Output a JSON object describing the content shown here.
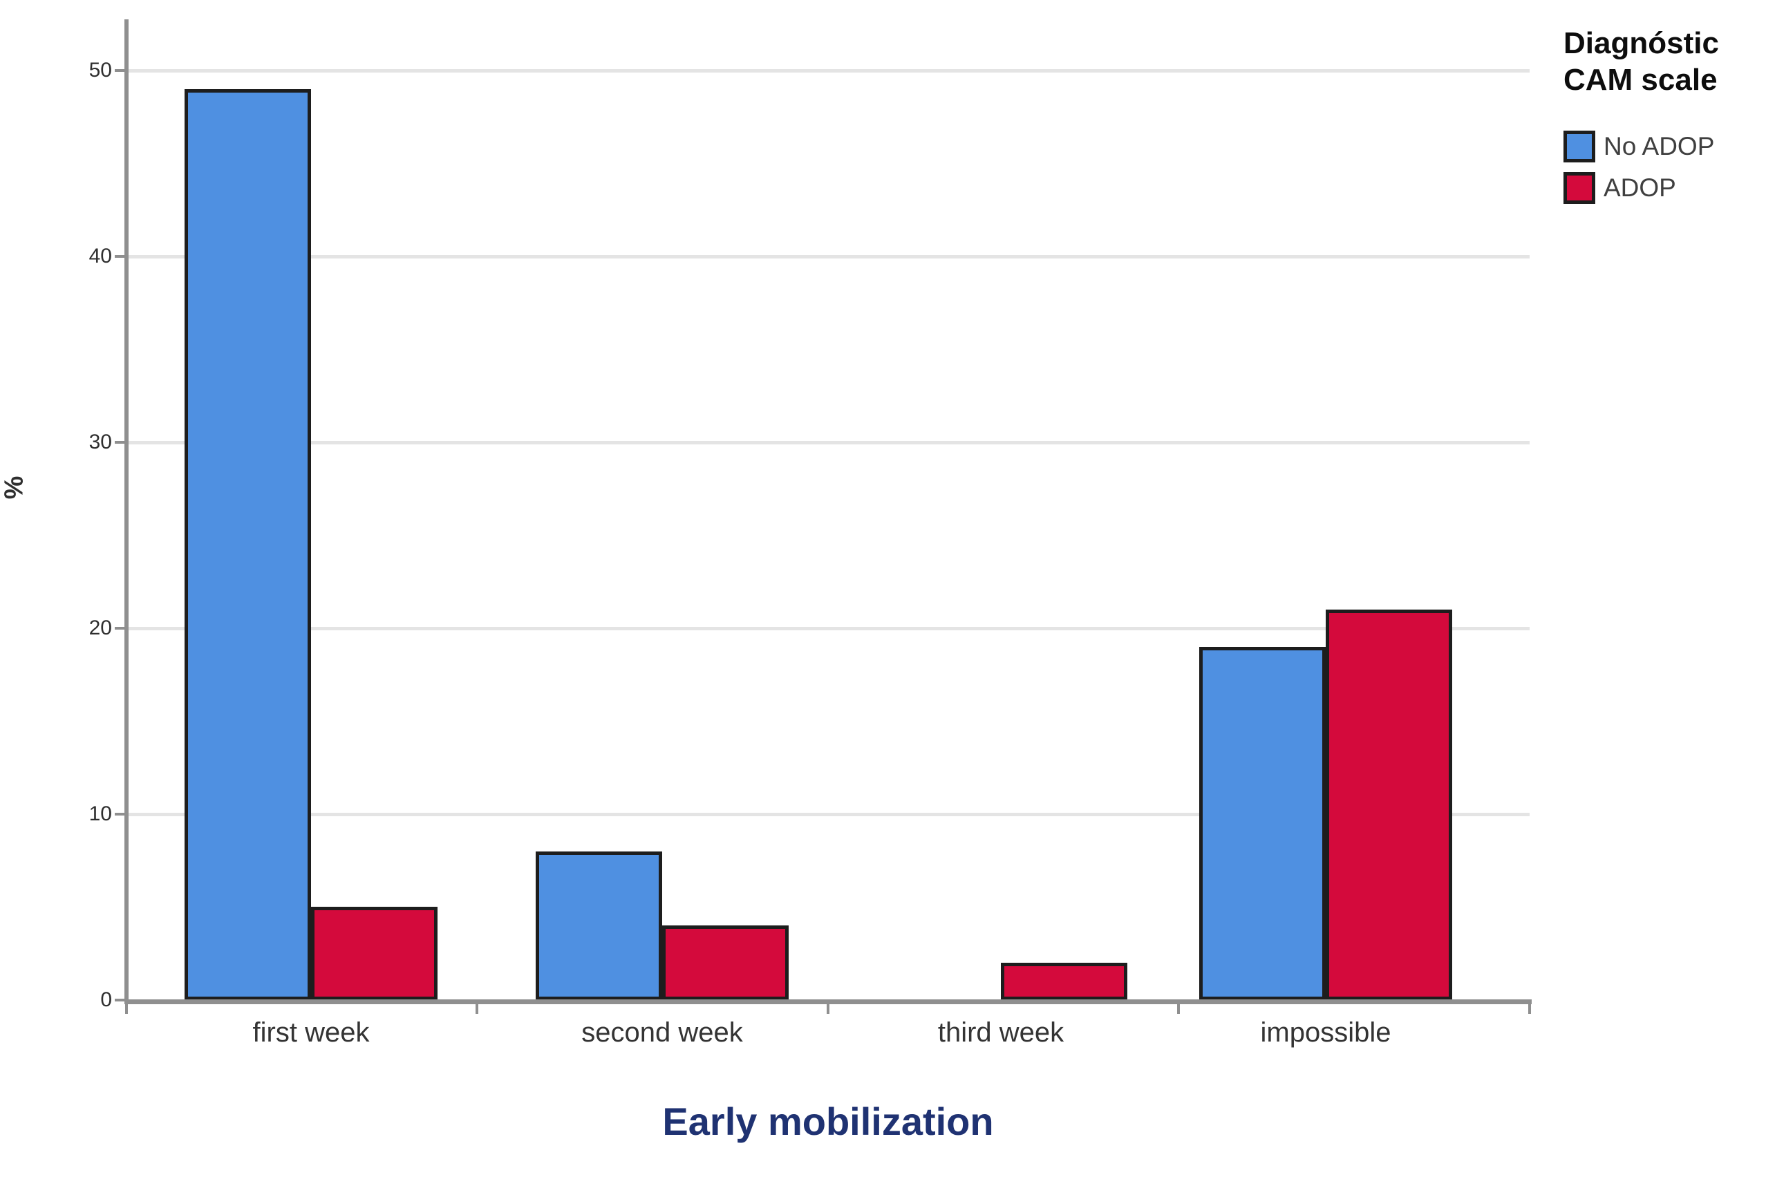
{
  "chart_data": {
    "type": "bar",
    "title": "",
    "xlabel": "Early mobilization",
    "ylabel": "%",
    "categories": [
      "first week",
      "second week",
      "third week",
      "impossible"
    ],
    "series": [
      {
        "name": "No ADOP",
        "color": "#4F90E1",
        "values": [
          49,
          8,
          0,
          19
        ]
      },
      {
        "name": "ADOP",
        "color": "#D40A3C",
        "values": [
          5,
          4,
          2,
          21
        ]
      }
    ],
    "ylim": [
      0,
      52.7
    ],
    "yticks": [
      0,
      10,
      20,
      30,
      40,
      50
    ],
    "grid": true,
    "legend_position": "top-right",
    "bar_border_color": "#1d1d1d"
  },
  "legend": {
    "title_lines": [
      "Diagnóstic",
      "CAM scale"
    ],
    "items": [
      {
        "label": "No ADOP",
        "color": "#4F90E1"
      },
      {
        "label": "ADOP",
        "color": "#D40A3C"
      }
    ]
  },
  "colors": {
    "background": "#ffffff",
    "grid": "#e4e4e4",
    "axis": "#8f8f8f",
    "tick_text": "#2f2f2f",
    "category_text": "#343434",
    "x_title_text": "#1f3272",
    "legend_title_text": "#0d0d0d",
    "legend_item_text": "#3f3f3f"
  }
}
